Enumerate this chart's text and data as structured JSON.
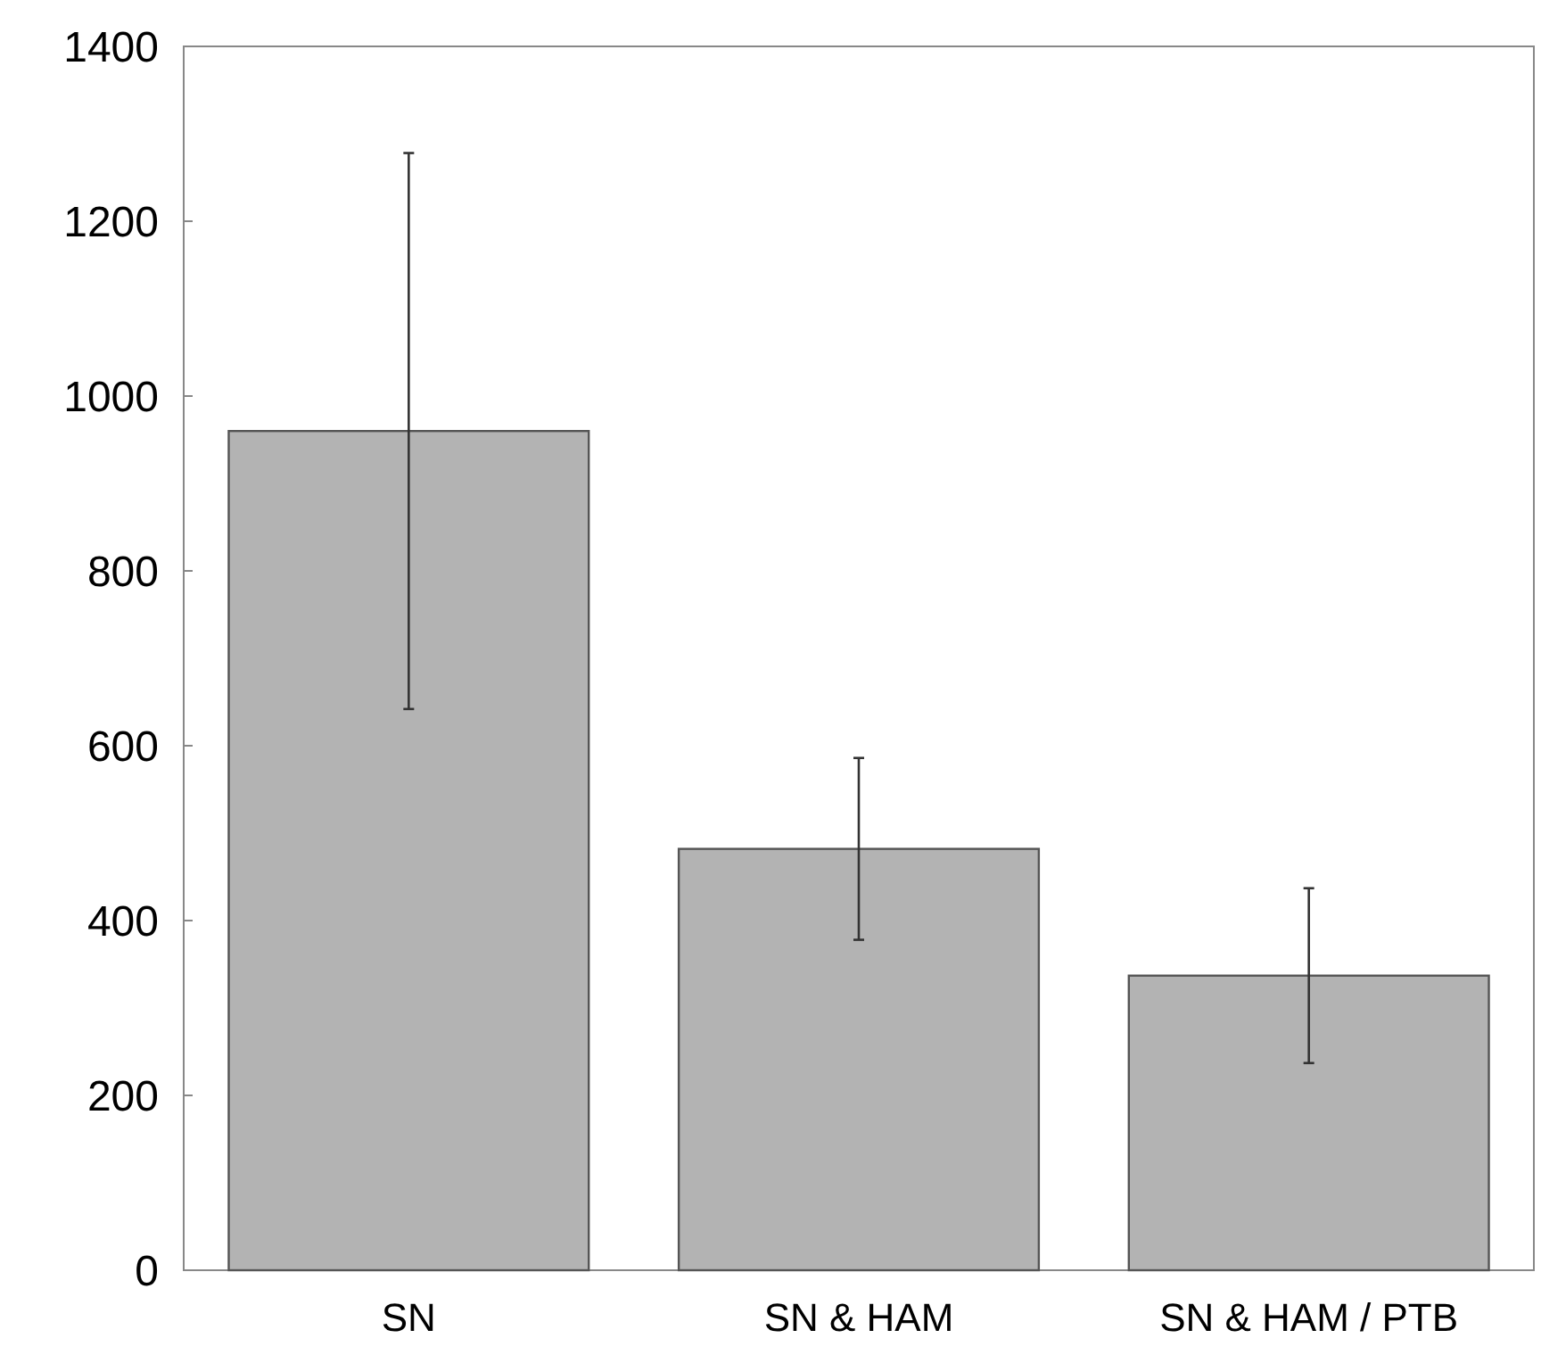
{
  "chart_data": {
    "type": "bar",
    "categories": [
      "SN",
      "SN & HAM",
      "SN & HAM / PTB"
    ],
    "values": [
      960,
      482,
      337
    ],
    "errors": [
      318,
      104,
      100
    ],
    "color": "#b3b3b3",
    "ylim": [
      0,
      1400
    ],
    "yticks": [
      0,
      200,
      400,
      600,
      800,
      1000,
      1200,
      1400
    ],
    "grid": false
  }
}
